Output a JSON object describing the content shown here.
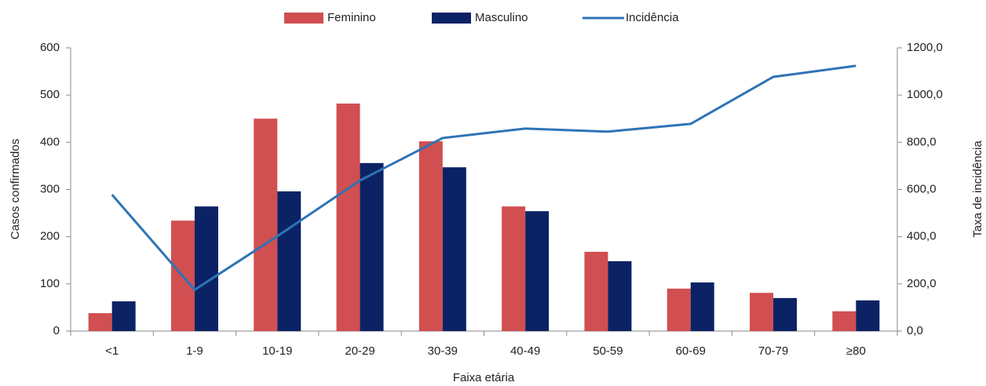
{
  "chart_data": {
    "type": "bar",
    "categories": [
      "<1",
      "1-9",
      "10-19",
      "20-29",
      "30-39",
      "40-49",
      "50-59",
      "60-69",
      "70-79",
      "≥80"
    ],
    "series": [
      {
        "name": "Feminino",
        "color": "#d14f50",
        "values": [
          38,
          234,
          450,
          482,
          402,
          264,
          168,
          90,
          81,
          42
        ]
      },
      {
        "name": "Masculino",
        "color": "#0b2265",
        "values": [
          63,
          264,
          296,
          356,
          347,
          254,
          148,
          103,
          70,
          65
        ]
      },
      {
        "name": "Incidência",
        "type": "line",
        "axis": "y2",
        "color": "#2e74b5",
        "values": [
          578,
          175,
          402,
          638,
          818,
          858,
          845,
          878,
          1077,
          1124
        ]
      }
    ],
    "x_label": "Faixa etária",
    "y_label": "Casos confirmados",
    "y2_label": "Taxa de incidência",
    "ylim": [
      0,
      600
    ],
    "yticks": [
      0,
      100,
      200,
      300,
      400,
      500,
      600
    ],
    "y2lim": [
      0,
      1200
    ],
    "y2ticks": [
      {
        "value": 0,
        "label": "0,0"
      },
      {
        "value": 200,
        "label": "200,0"
      },
      {
        "value": 400,
        "label": "400,0"
      },
      {
        "value": 600,
        "label": "600,0"
      },
      {
        "value": 800,
        "label": "800,0"
      },
      {
        "value": 1000,
        "label": "1000,0"
      },
      {
        "value": 1200,
        "label": "1200,0"
      }
    ],
    "legend": "top"
  }
}
